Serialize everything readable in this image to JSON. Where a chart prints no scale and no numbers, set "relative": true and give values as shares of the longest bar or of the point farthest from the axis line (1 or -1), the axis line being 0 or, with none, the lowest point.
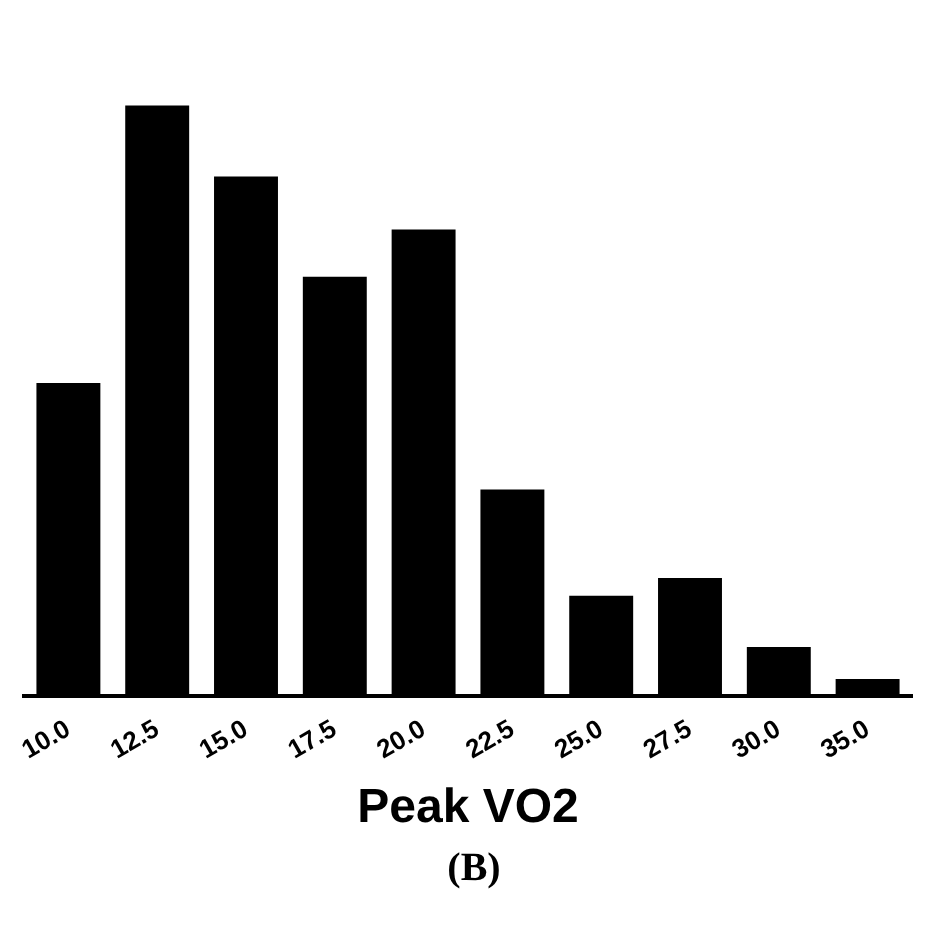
{
  "chart_data": {
    "type": "bar",
    "relative": true,
    "xlabel": "Peak VO2",
    "annotations": [
      "(B)"
    ],
    "categories": [
      "10.0",
      "12.5",
      "15.0",
      "17.5",
      "20.0",
      "22.5",
      "25.0",
      "27.5",
      "30.0",
      "35.0"
    ],
    "values": [
      0.53,
      1,
      0.88,
      0.71,
      0.79,
      0.35,
      0.17,
      0.2,
      0.083,
      0.029
    ],
    "color": "#000000",
    "grid": false,
    "legend": false
  }
}
